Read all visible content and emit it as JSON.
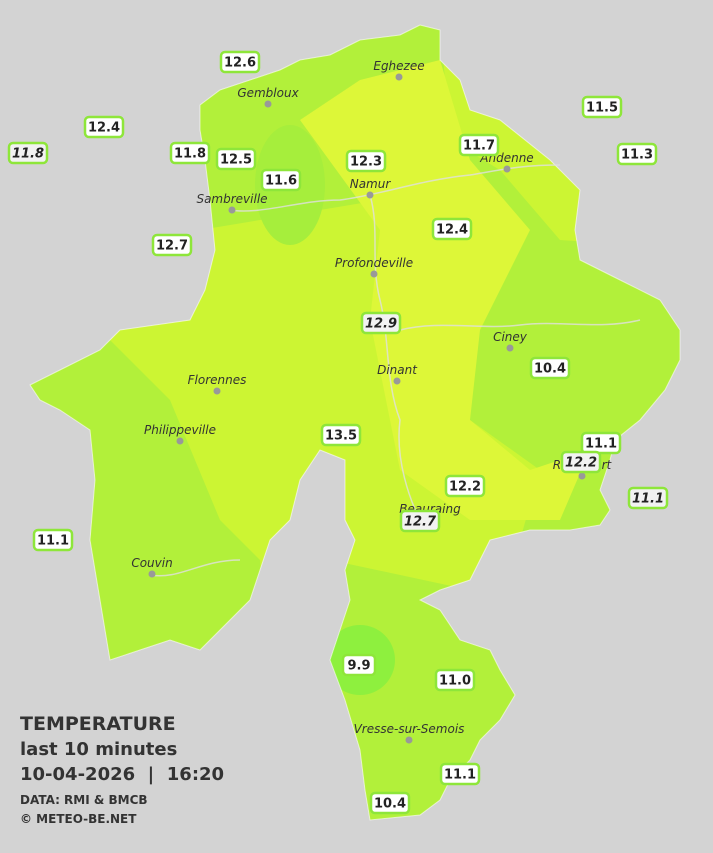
{
  "legend": {
    "title": "TEMPERATURE",
    "subtitle": "last 10 minutes",
    "datetime": "10-04-2026  |  16:20",
    "source": "DATA: RMI & BMCB",
    "copyright": "© METEO-BE.NET"
  },
  "cities": [
    "Eghezee",
    "Gembloux",
    "Andenne",
    "Namur",
    "Sambreville",
    "Profondeville",
    "Ciney",
    "Dinant",
    "Florennes",
    "Philippeville",
    "Rochefort",
    "Beauraing",
    "Couvin",
    "Vresse-sur-Semois"
  ],
  "stations": [
    {
      "label": "12.6",
      "italic": false
    },
    {
      "label": "12.4",
      "italic": false
    },
    {
      "label": "11.8",
      "italic": true
    },
    {
      "label": "11.8",
      "italic": false
    },
    {
      "label": "12.5",
      "italic": false
    },
    {
      "label": "11.6",
      "italic": false
    },
    {
      "label": "12.3",
      "italic": false
    },
    {
      "label": "11.7",
      "italic": false
    },
    {
      "label": "11.5",
      "italic": false
    },
    {
      "label": "11.3",
      "italic": false
    },
    {
      "label": "12.4",
      "italic": false
    },
    {
      "label": "12.7",
      "italic": false
    },
    {
      "label": "12.9",
      "italic": true
    },
    {
      "label": "10.4",
      "italic": false
    },
    {
      "label": "13.5",
      "italic": false
    },
    {
      "label": "11.1",
      "italic": false
    },
    {
      "label": "12.2",
      "italic": true
    },
    {
      "label": "11.1",
      "italic": true
    },
    {
      "label": "12.2",
      "italic": false
    },
    {
      "label": "12.7",
      "italic": true
    },
    {
      "label": "11.1",
      "italic": false
    },
    {
      "label": "9.9",
      "italic": false
    },
    {
      "label": "11.0",
      "italic": false
    },
    {
      "label": "11.1",
      "italic": false
    },
    {
      "label": "10.4",
      "italic": false
    }
  ]
}
